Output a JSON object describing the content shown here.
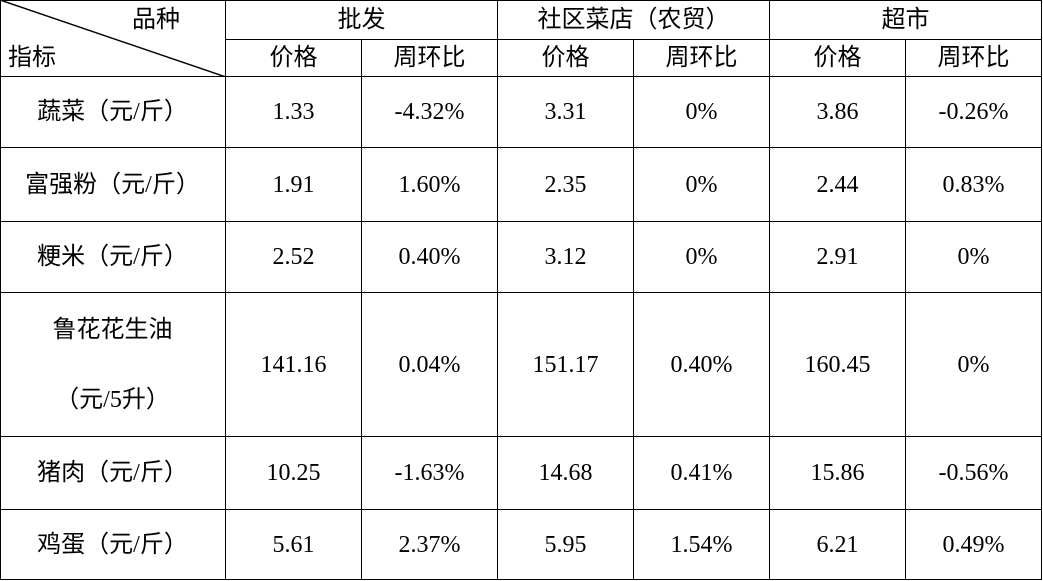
{
  "header": {
    "corner_top": "品种",
    "corner_bottom": "指标",
    "groups": [
      "批发",
      "社区菜店（农贸）",
      "超市"
    ],
    "subheaders": [
      "价格",
      "周环比",
      "价格",
      "周环比",
      "价格",
      "周环比"
    ]
  },
  "table": {
    "rows": [
      {
        "label": [
          "蔬菜（元/斤）"
        ],
        "cells": [
          "1.33",
          "-4.32%",
          "3.31",
          "0%",
          "3.86",
          "-0.26%"
        ]
      },
      {
        "label": [
          "富强粉（元/斤）"
        ],
        "cells": [
          "1.91",
          "1.60%",
          "2.35",
          "0%",
          "2.44",
          "0.83%"
        ]
      },
      {
        "label": [
          "粳米（元/斤）"
        ],
        "cells": [
          "2.52",
          "0.40%",
          "3.12",
          "0%",
          "2.91",
          "0%"
        ]
      },
      {
        "label": [
          "鲁花花生油",
          "（元/5升）"
        ],
        "cells": [
          "141.16",
          "0.04%",
          "151.17",
          "0.40%",
          "160.45",
          "0%"
        ]
      },
      {
        "label": [
          "猪肉（元/斤）"
        ],
        "cells": [
          "10.25",
          "-1.63%",
          "14.68",
          "0.41%",
          "15.86",
          "-0.56%"
        ]
      },
      {
        "label": [
          "鸡蛋（元/斤）"
        ],
        "cells": [
          "5.61",
          "2.37%",
          "5.95",
          "1.54%",
          "6.21",
          "0.49%"
        ]
      }
    ]
  }
}
